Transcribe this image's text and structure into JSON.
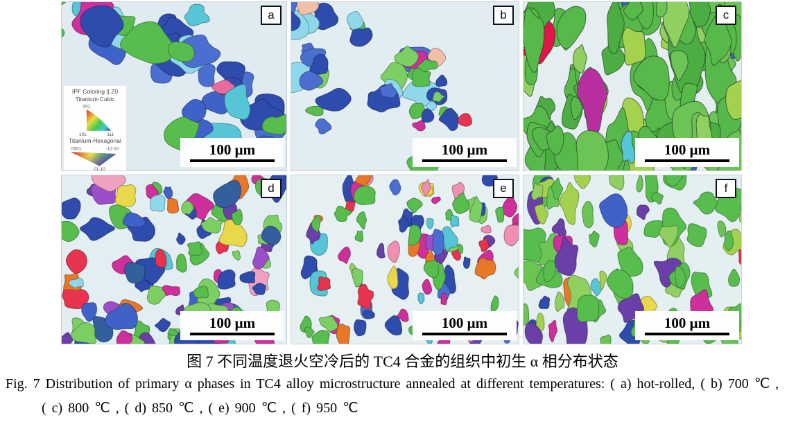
{
  "figure": {
    "scale_bar": "100 μm"
  },
  "legend": {
    "title": "IPF Coloring || Z0",
    "cubic_title": "Titanium-Cubic",
    "cubic_corners": [
      "001",
      "101",
      "111"
    ],
    "hex_title": "Titanium-Hexagonal",
    "hex_corners": [
      "0001",
      "-12-10",
      "01-10"
    ]
  },
  "captions": {
    "zh": "图 7  不同温度退火空冷后的 TC4 合金的组织中初生 α 相分布状态",
    "en_line1": "Fig. 7  Distribution of primary α phases in TC4 alloy microstructure annealed at different temperatures: ( a) hot-rolled, ( b) 700 ℃ ,",
    "en_line2": "( c) 800 ℃ , ( d) 850 ℃ , ( e) 900 ℃ , ( f) 950 ℃"
  },
  "panels": [
    {
      "label": "a",
      "condition": "hot-rolled",
      "render": {
        "seed": 7,
        "mode": "cluster",
        "clusters": 7,
        "spread": 52,
        "count": 46,
        "rmin": 9,
        "rmax": 27,
        "ex": [
          0.9,
          1.4
        ],
        "ey": [
          0.8,
          1.2
        ],
        "bg": "#e0ebf1",
        "palette": [
          [
            "#2e4bae",
            26
          ],
          [
            "#4a6fd0",
            10
          ],
          [
            "#3f62c8",
            8
          ],
          [
            "#57bd4d",
            24
          ],
          [
            "#7ccf63",
            8
          ],
          [
            "#56c6d6",
            9
          ],
          [
            "#8fd8ea",
            5
          ],
          [
            "#cf2f9a",
            2
          ],
          [
            "#e86aa0",
            1
          ]
        ]
      }
    },
    {
      "label": "b",
      "condition": "700 ℃",
      "render": {
        "seed": 13,
        "mode": "cluster",
        "clusters": 11,
        "spread": 40,
        "count": 44,
        "rmin": 7,
        "rmax": 21,
        "ex": [
          0.9,
          1.5
        ],
        "ey": [
          0.8,
          1.2
        ],
        "bg": "#e2edf2",
        "palette": [
          [
            "#2e4bae",
            24
          ],
          [
            "#4a6fd0",
            10
          ],
          [
            "#57bd4d",
            22
          ],
          [
            "#7ccf63",
            7
          ],
          [
            "#56c6d6",
            8
          ],
          [
            "#8fd8ea",
            5
          ],
          [
            "#cf2f9a",
            3
          ],
          [
            "#e8334e",
            2
          ],
          [
            "#f2c0a8",
            3
          ],
          [
            "#6a3fa8",
            2
          ]
        ]
      }
    },
    {
      "label": "c",
      "condition": "800 ℃",
      "render": {
        "seed": 23,
        "mode": "bands",
        "bands": 11,
        "jitter": 26,
        "count": 110,
        "rmin": 10,
        "rmax": 26,
        "ex": [
          0.7,
          1.1
        ],
        "ey": [
          1.2,
          2.2
        ],
        "bg": "#e4eef0",
        "stroke": "#233a23",
        "palette": [
          [
            "#57b94a",
            40
          ],
          [
            "#4cae42",
            20
          ],
          [
            "#6cc455",
            16
          ],
          [
            "#8fd060",
            8
          ],
          [
            "#a5d24e",
            4
          ],
          [
            "#3f62c8",
            3
          ],
          [
            "#56c6d6",
            2
          ],
          [
            "#b82fa0",
            1
          ],
          [
            "#e01648",
            1
          ],
          [
            "#7a3fa8",
            1
          ]
        ]
      }
    },
    {
      "label": "d",
      "condition": "850 ℃",
      "render": {
        "seed": 31,
        "mode": "uniform",
        "count": 100,
        "rmin": 7,
        "rmax": 20,
        "ex": [
          0.8,
          1.3
        ],
        "ey": [
          0.8,
          1.3
        ],
        "bg": "#e3eef2",
        "palette": [
          [
            "#57bd4d",
            20
          ],
          [
            "#7ccf63",
            8
          ],
          [
            "#2e4bae",
            16
          ],
          [
            "#3f62c8",
            10
          ],
          [
            "#56c6d6",
            5
          ],
          [
            "#6a3fa8",
            8
          ],
          [
            "#cf2f9a",
            7
          ],
          [
            "#8fd8ea",
            4
          ],
          [
            "#e87828",
            4
          ],
          [
            "#e8334e",
            3
          ],
          [
            "#e8d84a",
            2
          ],
          [
            "#9a4fc8",
            3
          ],
          [
            "#345f9e",
            4
          ],
          [
            "#f0a0c0",
            2
          ]
        ]
      }
    },
    {
      "label": "e",
      "condition": "900 ℃",
      "render": {
        "seed": 41,
        "mode": "uniform",
        "count": 105,
        "rmin": 5,
        "rmax": 14,
        "ex": [
          0.7,
          1.2
        ],
        "ey": [
          0.9,
          1.8
        ],
        "bg": "#e6f0f2",
        "palette": [
          [
            "#57bd4d",
            18
          ],
          [
            "#7ccf63",
            6
          ],
          [
            "#2e4bae",
            12
          ],
          [
            "#4a6fd0",
            6
          ],
          [
            "#cf2f9a",
            11
          ],
          [
            "#6a3fa8",
            9
          ],
          [
            "#e8334e",
            7
          ],
          [
            "#e87828",
            7
          ],
          [
            "#56c6d6",
            5
          ],
          [
            "#f08fb0",
            4
          ],
          [
            "#e8d84a",
            4
          ],
          [
            "#9a4fc8",
            4
          ],
          [
            "#8fd060",
            3
          ]
        ]
      }
    },
    {
      "label": "f",
      "condition": "950 ℃",
      "render": {
        "seed": 53,
        "mode": "bands",
        "bands": 9,
        "jitter": 40,
        "count": 85,
        "rmin": 7,
        "rmax": 19,
        "ex": [
          0.7,
          1.2
        ],
        "ey": [
          1.0,
          1.8
        ],
        "bg": "#e4eff2",
        "palette": [
          [
            "#57bd4d",
            34
          ],
          [
            "#6cc455",
            10
          ],
          [
            "#8fd060",
            8
          ],
          [
            "#a5d24e",
            6
          ],
          [
            "#2e4bae",
            6
          ],
          [
            "#3f62c8",
            3
          ],
          [
            "#6a3fa8",
            5
          ],
          [
            "#cf2f9a",
            5
          ],
          [
            "#e8334e",
            3
          ],
          [
            "#e87828",
            3
          ],
          [
            "#56c6d6",
            2
          ],
          [
            "#e8d84a",
            2
          ]
        ]
      }
    }
  ]
}
